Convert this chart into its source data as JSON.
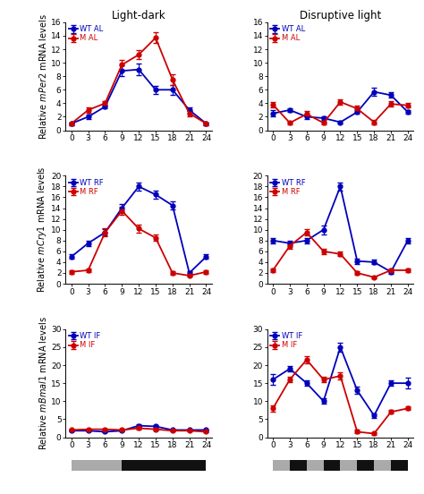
{
  "x": [
    0,
    3,
    6,
    9,
    12,
    15,
    18,
    21,
    24
  ],
  "LD_Per2_WT": [
    1.0,
    2.0,
    3.5,
    8.8,
    9.0,
    6.0,
    6.0,
    3.0,
    1.0
  ],
  "LD_Per2_M": [
    1.0,
    3.0,
    4.0,
    9.7,
    11.2,
    13.7,
    7.5,
    2.5,
    1.0
  ],
  "LD_Per2_WT_err": [
    0.2,
    0.3,
    0.3,
    0.8,
    0.9,
    0.6,
    0.7,
    0.4,
    0.2
  ],
  "LD_Per2_M_err": [
    0.2,
    0.4,
    0.3,
    0.7,
    0.7,
    0.8,
    0.8,
    0.4,
    0.2
  ],
  "DL_Per2_WT": [
    2.5,
    3.0,
    2.0,
    1.8,
    1.2,
    2.7,
    5.7,
    5.2,
    2.7
  ],
  "DL_Per2_M": [
    3.8,
    1.1,
    2.4,
    1.1,
    4.2,
    3.2,
    1.2,
    3.9,
    3.7
  ],
  "DL_Per2_WT_err": [
    0.5,
    0.3,
    0.3,
    0.2,
    0.2,
    0.3,
    0.6,
    0.4,
    0.3
  ],
  "DL_Per2_M_err": [
    0.4,
    0.2,
    0.4,
    0.2,
    0.4,
    0.5,
    0.3,
    0.4,
    0.3
  ],
  "LD_Cry1_WT": [
    5.0,
    7.5,
    9.5,
    14.0,
    18.0,
    16.5,
    14.5,
    2.0,
    5.0
  ],
  "LD_Cry1_M": [
    2.2,
    2.5,
    9.5,
    13.5,
    10.2,
    8.5,
    2.0,
    1.5,
    2.2
  ],
  "LD_Cry1_WT_err": [
    0.4,
    0.5,
    0.6,
    0.8,
    0.7,
    0.7,
    0.7,
    0.3,
    0.4
  ],
  "LD_Cry1_M_err": [
    0.3,
    0.3,
    0.7,
    0.8,
    0.7,
    0.6,
    0.3,
    0.2,
    0.3
  ],
  "DL_Cry1_WT": [
    8.0,
    7.5,
    8.0,
    10.0,
    18.0,
    4.2,
    4.0,
    2.2,
    8.0
  ],
  "DL_Cry1_M": [
    2.5,
    7.0,
    9.5,
    6.0,
    5.5,
    2.0,
    1.2,
    2.5,
    2.5
  ],
  "DL_Cry1_WT_err": [
    0.5,
    0.4,
    0.5,
    0.8,
    0.8,
    0.5,
    0.4,
    0.3,
    0.5
  ],
  "DL_Cry1_M_err": [
    0.3,
    0.5,
    0.6,
    0.5,
    0.4,
    0.3,
    0.2,
    0.3,
    0.3
  ],
  "LD_Bmal1_WT": [
    1.8,
    1.8,
    1.5,
    1.8,
    3.2,
    3.0,
    2.0,
    2.0,
    2.0
  ],
  "LD_Bmal1_M": [
    2.0,
    2.2,
    2.2,
    2.0,
    2.5,
    2.2,
    1.8,
    1.8,
    1.5
  ],
  "LD_Bmal1_WT_err": [
    0.2,
    0.2,
    0.2,
    0.2,
    0.3,
    0.3,
    0.2,
    0.2,
    0.2
  ],
  "LD_Bmal1_M_err": [
    0.2,
    0.2,
    0.2,
    0.2,
    0.3,
    0.3,
    0.2,
    0.2,
    0.2
  ],
  "DL_Bmal1_WT": [
    16.0,
    19.0,
    15.0,
    10.0,
    25.0,
    13.0,
    6.0,
    15.0,
    15.0
  ],
  "DL_Bmal1_M": [
    8.0,
    16.0,
    21.5,
    16.0,
    17.0,
    1.5,
    1.0,
    7.0,
    8.0
  ],
  "DL_Bmal1_WT_err": [
    1.5,
    0.8,
    0.7,
    0.8,
    1.2,
    1.0,
    0.7,
    0.8,
    1.5
  ],
  "DL_Bmal1_M_err": [
    0.8,
    0.8,
    0.9,
    0.8,
    1.0,
    0.5,
    0.3,
    0.5,
    0.5
  ],
  "blue": "#0000bb",
  "red": "#cc0000",
  "marker": "o",
  "markersize": 3.5,
  "linewidth": 1.3,
  "LD_Per2_ylim": [
    0,
    16
  ],
  "DL_Per2_ylim": [
    0,
    16
  ],
  "LD_Cry1_ylim": [
    0,
    20
  ],
  "DL_Cry1_ylim": [
    0,
    20
  ],
  "LD_Bmal1_ylim": [
    0,
    30
  ],
  "DL_Bmal1_ylim": [
    0,
    30
  ],
  "LD_Per2_yticks": [
    0,
    2,
    4,
    6,
    8,
    10,
    12,
    14,
    16
  ],
  "DL_Per2_yticks": [
    0,
    2,
    4,
    6,
    8,
    10,
    12,
    14,
    16
  ],
  "LD_Cry1_yticks": [
    0,
    2,
    4,
    6,
    8,
    10,
    12,
    14,
    16,
    18,
    20
  ],
  "DL_Cry1_yticks": [
    0,
    2,
    4,
    6,
    8,
    10,
    12,
    14,
    16,
    18,
    20
  ],
  "LD_Bmal1_yticks": [
    0,
    5,
    10,
    15,
    20,
    25,
    30
  ],
  "DL_Bmal1_yticks": [
    0,
    5,
    10,
    15,
    20,
    25,
    30
  ],
  "col_titles": [
    "Light-dark",
    "Disruptive light"
  ],
  "ylabel_Per2": "Relative $\\it{mPer2}$ mRNA levels",
  "ylabel_Cry1": "Relative $\\it{mCry1}$ mRNA levels",
  "ylabel_Bmal1": "Relative $\\it{mBmal1}$ mRNA levels",
  "legend_LD_Per2": [
    "WT AL",
    "M AL"
  ],
  "legend_DL_Per2": [
    "WT AL",
    "M AL"
  ],
  "legend_LD_Cry1": [
    "WT RF",
    "M RF"
  ],
  "legend_DL_Cry1": [
    "WT RF",
    "M RF"
  ],
  "legend_LD_Bmal1": [
    "WT IF",
    "M IF"
  ],
  "legend_DL_Bmal1": [
    "WT IF",
    "M IF"
  ],
  "LD_seg_colors": [
    "#aaaaaa",
    "#aaaaaa",
    "#aaaaaa",
    "#111111",
    "#111111",
    "#111111",
    "#111111",
    "#111111"
  ],
  "DL_seg_colors": [
    "#aaaaaa",
    "#111111",
    "#aaaaaa",
    "#111111",
    "#aaaaaa",
    "#111111",
    "#aaaaaa",
    "#111111"
  ]
}
